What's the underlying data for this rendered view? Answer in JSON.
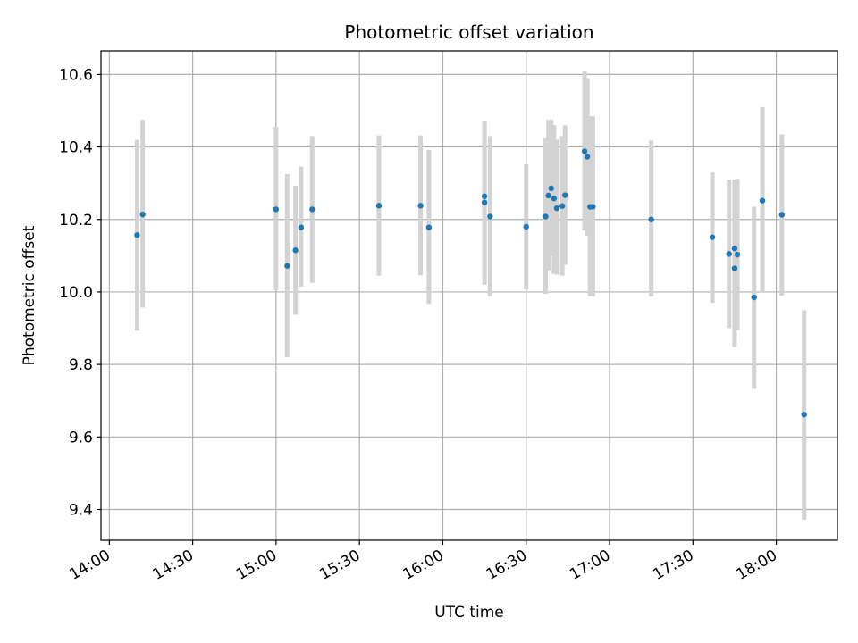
{
  "chart_data": {
    "type": "scatter",
    "title": "Photometric offset variation",
    "xlabel": "UTC time",
    "ylabel": "Photometric offset",
    "grid": true,
    "x_ticks": [
      "14:00",
      "14:30",
      "15:00",
      "15:30",
      "16:00",
      "16:30",
      "17:00",
      "17:30",
      "18:00"
    ],
    "y_ticks": [
      "9.4",
      "9.6",
      "9.8",
      "10.0",
      "10.2",
      "10.4",
      "10.6"
    ],
    "xlim": [
      "13:57",
      "18:22"
    ],
    "ylim": [
      9.315,
      10.665
    ],
    "colors": {
      "point": "#1f77b4",
      "errorbar": "#d3d3d3",
      "grid": "#b0b0b0"
    },
    "points": [
      {
        "x": "14:10",
        "y": 10.157,
        "y_low": 9.893,
        "y_high": 10.42
      },
      {
        "x": "14:12",
        "y": 10.214,
        "y_low": 9.957,
        "y_high": 10.475
      },
      {
        "x": "15:00",
        "y": 10.228,
        "y_low": 10.005,
        "y_high": 10.455
      },
      {
        "x": "15:04",
        "y": 10.072,
        "y_low": 9.82,
        "y_high": 10.325
      },
      {
        "x": "15:07",
        "y": 10.115,
        "y_low": 9.937,
        "y_high": 10.293
      },
      {
        "x": "15:09",
        "y": 10.178,
        "y_low": 10.015,
        "y_high": 10.346
      },
      {
        "x": "15:13",
        "y": 10.228,
        "y_low": 10.025,
        "y_high": 10.43
      },
      {
        "x": "15:37",
        "y": 10.238,
        "y_low": 10.045,
        "y_high": 10.432
      },
      {
        "x": "15:52",
        "y": 10.238,
        "y_low": 10.046,
        "y_high": 10.432
      },
      {
        "x": "15:55",
        "y": 10.178,
        "y_low": 9.967,
        "y_high": 10.392
      },
      {
        "x": "16:15",
        "y": 10.264,
        "y_low": 10.04,
        "y_high": 10.47
      },
      {
        "x": "16:15",
        "y": 10.247,
        "y_low": 10.02,
        "y_high": 10.47
      },
      {
        "x": "16:17",
        "y": 10.208,
        "y_low": 9.988,
        "y_high": 10.43
      },
      {
        "x": "16:30",
        "y": 10.18,
        "y_low": 10.008,
        "y_high": 10.352
      },
      {
        "x": "16:37",
        "y": 10.208,
        "y_low": 9.995,
        "y_high": 10.425
      },
      {
        "x": "16:38",
        "y": 10.266,
        "y_low": 10.06,
        "y_high": 10.475
      },
      {
        "x": "16:39",
        "y": 10.286,
        "y_low": 10.1,
        "y_high": 10.475
      },
      {
        "x": "16:40",
        "y": 10.258,
        "y_low": 10.05,
        "y_high": 10.46
      },
      {
        "x": "16:41",
        "y": 10.231,
        "y_low": 10.048,
        "y_high": 10.42
      },
      {
        "x": "16:43",
        "y": 10.237,
        "y_low": 10.045,
        "y_high": 10.43
      },
      {
        "x": "16:44",
        "y": 10.267,
        "y_low": 10.075,
        "y_high": 10.46
      },
      {
        "x": "16:51",
        "y": 10.388,
        "y_low": 10.17,
        "y_high": 10.608
      },
      {
        "x": "16:52",
        "y": 10.373,
        "y_low": 10.155,
        "y_high": 10.59
      },
      {
        "x": "16:53",
        "y": 10.235,
        "y_low": 9.988,
        "y_high": 10.485
      },
      {
        "x": "16:54",
        "y": 10.235,
        "y_low": 9.988,
        "y_high": 10.485
      },
      {
        "x": "17:15",
        "y": 10.2,
        "y_low": 9.987,
        "y_high": 10.418
      },
      {
        "x": "17:37",
        "y": 10.151,
        "y_low": 9.97,
        "y_high": 10.33
      },
      {
        "x": "17:43",
        "y": 10.105,
        "y_low": 9.9,
        "y_high": 10.31
      },
      {
        "x": "17:45",
        "y": 10.12,
        "y_low": 9.93,
        "y_high": 10.31
      },
      {
        "x": "17:45",
        "y": 10.065,
        "y_low": 9.848,
        "y_high": 10.31
      },
      {
        "x": "17:46",
        "y": 10.103,
        "y_low": 9.895,
        "y_high": 10.312
      },
      {
        "x": "17:52",
        "y": 9.985,
        "y_low": 9.733,
        "y_high": 10.235
      },
      {
        "x": "17:55",
        "y": 10.252,
        "y_low": 10.0,
        "y_high": 10.51
      },
      {
        "x": "18:02",
        "y": 10.213,
        "y_low": 9.99,
        "y_high": 10.435
      },
      {
        "x": "18:10",
        "y": 9.662,
        "y_low": 9.372,
        "y_high": 9.95
      }
    ]
  }
}
